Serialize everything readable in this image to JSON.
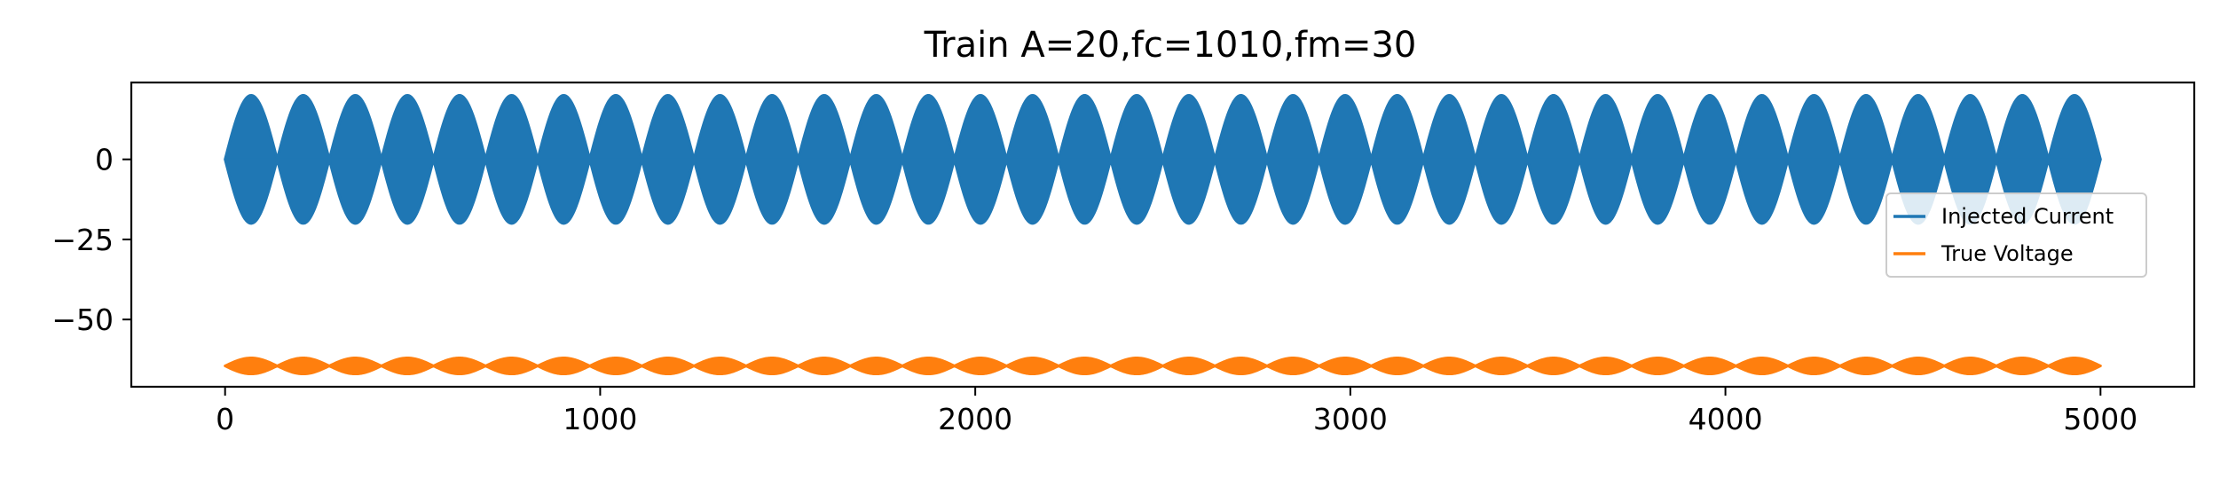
{
  "chart_data": {
    "type": "line",
    "title": "Train A=20,fc=1010,fm=30",
    "xlabel": "",
    "ylabel": "",
    "xlim": [
      -250,
      5250
    ],
    "ylim": [
      -71,
      24
    ],
    "xticks": [
      0,
      1000,
      2000,
      3000,
      4000,
      5000
    ],
    "xtick_labels": [
      "0",
      "1000",
      "2000",
      "3000",
      "4000",
      "5000"
    ],
    "yticks": [
      0,
      -25,
      -50
    ],
    "ytick_labels": [
      "0",
      "−25",
      "−50"
    ],
    "grid": false,
    "legend": {
      "location": "center-right"
    },
    "series": [
      {
        "name": "Injected Current",
        "color": "#1f77b4",
        "x_range": [
          0,
          5000
        ],
        "center": 0,
        "amplitude": 20,
        "envelope_lobes": 36,
        "carrier_frequency": 1010,
        "modulation_frequency": 30
      },
      {
        "name": "True Voltage",
        "color": "#ff7f0e",
        "x_range": [
          0,
          5000
        ],
        "center": -64.5,
        "amplitude": 2.5,
        "envelope_lobes": 36
      }
    ]
  }
}
